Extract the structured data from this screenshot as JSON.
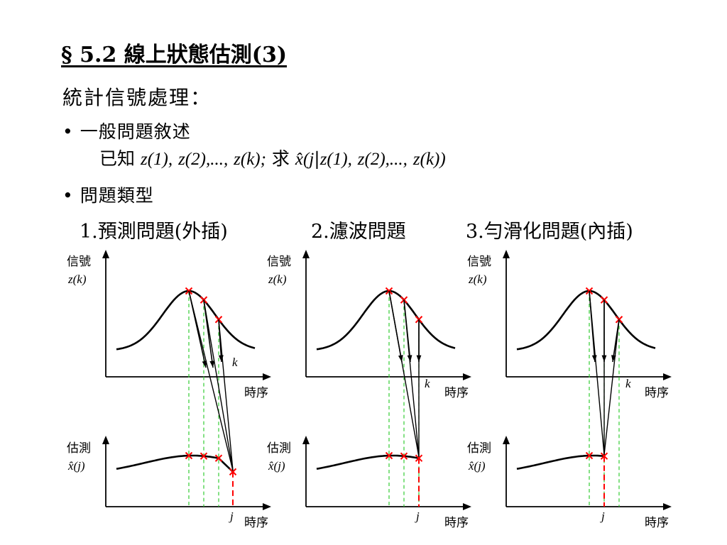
{
  "title": "§ 5.2 線上狀態估測(3)",
  "heading": "統計信號處理：",
  "bullet1": "• 一般問題敘述",
  "statement": {
    "prefix": "已知",
    "z1": "z(1),",
    "z2": "z(2),...,",
    "zk": "z(k);",
    "seek": "求",
    "est": "x̂(",
    "j": "j",
    "bar": "|",
    "z1b": "z(1),",
    "z2b": "z(2),...,",
    "zkb": "z(k))"
  },
  "bullet2": "• 問題類型",
  "problems": [
    "1.預測問題(外插)",
    "2.濾波問題",
    "3.勻滑化問題(內插)"
  ],
  "axis_labels": {
    "signal_top": "信號",
    "signal_bottom": "z(k)",
    "estimate_top": "估測",
    "estimate_bottom": "x̂(j)",
    "time": "時序",
    "k": "k",
    "j": "j"
  },
  "colors": {
    "curve": "#000000",
    "marker": "#ff0000",
    "guide": "#33cc33",
    "current": "#ff0000"
  }
}
